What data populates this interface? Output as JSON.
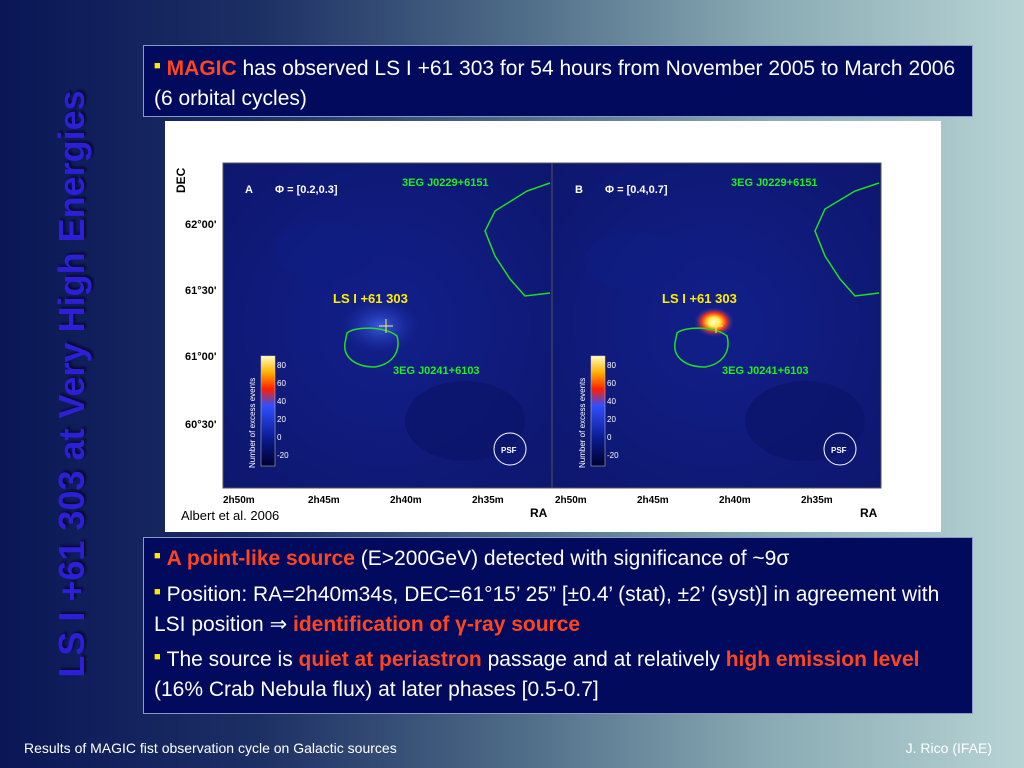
{
  "side_title": "LS I +61 303 at Very High Energies",
  "top_box": {
    "highlight": "MAGIC",
    "text": " has observed LS I +61 303 for 54 hours from November 2005 to March 2006 (6 orbital cycles)"
  },
  "figure": {
    "ylabel": "DEC",
    "xlabel": "RA",
    "credit": "Albert et al. 2006",
    "dec_ticks": [
      "62°00'",
      "61°30'",
      "61°00'",
      "60°30'"
    ],
    "ra_ticks": [
      "2h50m",
      "2h45m",
      "2h40m",
      "2h35m"
    ],
    "colorbar_label": "Number of excess events",
    "colorbar_ticks": [
      "80",
      "60",
      "40",
      "20",
      "0",
      "-20"
    ],
    "psf_label": "PSF",
    "panel_a": {
      "letter": "A",
      "phase": "Φ = [0.2,0.3]"
    },
    "panel_b": {
      "letter": "B",
      "phase": "Φ = [0.4,0.7]"
    },
    "source_label": "LS I +61 303",
    "egret1": "3EG J0229+6151",
    "egret2": "3EG J0241+6103"
  },
  "bottom_box": {
    "b1_highlight": "A point-like source",
    "b1_text": " (E>200GeV) detected with significance of ~9σ",
    "b2_text": "Position: RA=2h40m34s, DEC=61°15’ 25” [±0.4’ (stat), ±2’ (syst)] in agreement with LSI position ⇒ ",
    "b2_highlight": "identification of γ-ray source",
    "b3_pre": "The source is ",
    "b3_hl1": "quiet at periastron",
    "b3_mid": " passage and at relatively ",
    "b3_hl2": "high emission level",
    "b3_post": " (16% Crab Nebula flux) at later phases [0.5-0.7]"
  },
  "footer_left": "Results of MAGIC fist observation cycle on Galactic sources",
  "footer_right": "J. Rico (IFAE)",
  "colors": {
    "highlight": "#ff4420",
    "bullet": "#ffea00",
    "box": "#010a5c",
    "title": "#2c1fd6"
  }
}
